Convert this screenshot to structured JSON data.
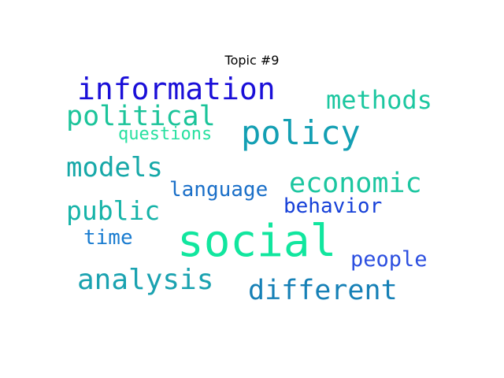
{
  "title": "Topic #9",
  "words": [
    {
      "text": "information",
      "color": "#1a0fd8"
    },
    {
      "text": "methods",
      "color": "#1cc7a0"
    },
    {
      "text": "political",
      "color": "#1cc49a"
    },
    {
      "text": "policy",
      "color": "#139fb3"
    },
    {
      "text": "questions",
      "color": "#27e0a0"
    },
    {
      "text": "models",
      "color": "#16a8a8"
    },
    {
      "text": "economic",
      "color": "#1cc6a0"
    },
    {
      "text": "language",
      "color": "#1a6fc8"
    },
    {
      "text": "public",
      "color": "#16b3a8"
    },
    {
      "text": "behavior",
      "color": "#1640d8"
    },
    {
      "text": "time",
      "color": "#1a7cd0"
    },
    {
      "text": "social",
      "color": "#11e69e"
    },
    {
      "text": "people",
      "color": "#2c4fe0"
    },
    {
      "text": "analysis",
      "color": "#1aa2b0"
    },
    {
      "text": "different",
      "color": "#1680b6"
    }
  ]
}
